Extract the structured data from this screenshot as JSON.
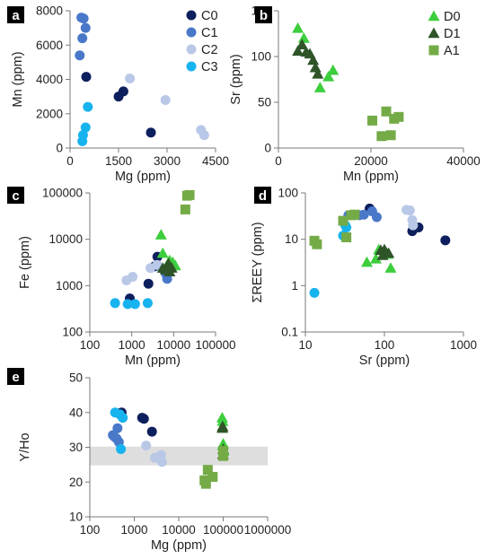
{
  "colors": {
    "C0": "#0d1f5c",
    "C1": "#4a78c9",
    "C2": "#b9c8e6",
    "C3": "#17b3ee",
    "D0": "#3dce3d",
    "D1": "#2e5428",
    "A1": "#74ab47",
    "band": "#dedede"
  },
  "chart_data": [
    {
      "id": "a",
      "type": "scatter",
      "panel_label": "a",
      "xlabel": "Mg (ppm)",
      "ylabel": "Mn (ppm)",
      "xscale": "linear",
      "yscale": "linear",
      "xlim": [
        0,
        4500
      ],
      "ylim": [
        0,
        8000
      ],
      "xticks": [
        "0",
        "1500",
        "3000",
        "4500"
      ],
      "yticks": [
        "0",
        "2000",
        "4000",
        "6000",
        "8000"
      ],
      "legend_position": "top-right",
      "legend": [
        "C0",
        "C1",
        "C2",
        "C3"
      ],
      "series": [
        {
          "name": "C0",
          "marker": "circle",
          "points": [
            [
              500,
              4150
            ],
            [
              1500,
              3000
            ],
            [
              1650,
              3300
            ],
            [
              2500,
              900
            ]
          ]
        },
        {
          "name": "C1",
          "marker": "circle",
          "points": [
            [
              350,
              7600
            ],
            [
              420,
              7550
            ],
            [
              480,
              7000
            ],
            [
              380,
              6400
            ],
            [
              300,
              5400
            ]
          ]
        },
        {
          "name": "C2",
          "marker": "circle",
          "points": [
            [
              1850,
              4050
            ],
            [
              2950,
              2800
            ],
            [
              4050,
              1050
            ],
            [
              4150,
              750
            ]
          ]
        },
        {
          "name": "C3",
          "marker": "circle",
          "points": [
            [
              550,
              2400
            ],
            [
              480,
              1200
            ],
            [
              400,
              750
            ],
            [
              380,
              400
            ]
          ]
        }
      ]
    },
    {
      "id": "b",
      "type": "scatter",
      "panel_label": "b",
      "xlabel": "Mn (ppm)",
      "ylabel": "Sr (ppm)",
      "xscale": "linear",
      "yscale": "linear",
      "xlim": [
        0,
        40000
      ],
      "ylim": [
        0,
        150
      ],
      "xticks": [
        "0",
        "20000",
        "40000"
      ],
      "yticks": [
        "0",
        "50",
        "100",
        "150"
      ],
      "legend_position": "top-right",
      "legend": [
        "D0",
        "D1",
        "A1"
      ],
      "series": [
        {
          "name": "D0",
          "marker": "triangle",
          "points": [
            [
              4200,
              131
            ],
            [
              5500,
              120
            ],
            [
              11800,
              85
            ],
            [
              10800,
              78
            ],
            [
              9000,
              66
            ]
          ]
        },
        {
          "name": "D1",
          "marker": "triangle",
          "points": [
            [
              5100,
              113
            ],
            [
              4200,
              106
            ],
            [
              6000,
              105
            ],
            [
              6800,
              103
            ],
            [
              7500,
              96
            ],
            [
              8000,
              88
            ],
            [
              8500,
              81
            ]
          ]
        },
        {
          "name": "A1",
          "marker": "square",
          "points": [
            [
              20300,
              30
            ],
            [
              22300,
              13
            ],
            [
              23300,
              40
            ],
            [
              24300,
              14
            ],
            [
              25000,
              32
            ],
            [
              26000,
              34
            ]
          ]
        }
      ]
    },
    {
      "id": "c",
      "type": "scatter",
      "panel_label": "c",
      "xlabel": "Mn (ppm)",
      "ylabel": "Fe (ppm)",
      "xscale": "log",
      "yscale": "log",
      "xlim": [
        100,
        100000
      ],
      "ylim": [
        100,
        100000
      ],
      "xticks": [
        "100",
        "1000",
        "10000",
        "100000"
      ],
      "yticks": [
        "100",
        "1000",
        "10000",
        "100000"
      ],
      "series": [
        {
          "name": "C0",
          "marker": "circle",
          "points": [
            [
              900,
              530
            ],
            [
              2500,
              1100
            ],
            [
              3500,
              2600
            ],
            [
              4100,
              4200
            ]
          ]
        },
        {
          "name": "C1",
          "marker": "circle",
          "points": [
            [
              5400,
              2300
            ],
            [
              6500,
              1800
            ],
            [
              7000,
              1400
            ],
            [
              7600,
              2600
            ],
            [
              6400,
              2100
            ]
          ]
        },
        {
          "name": "C2",
          "marker": "circle",
          "points": [
            [
              750,
              1300
            ],
            [
              1050,
              1550
            ],
            [
              2800,
              2400
            ],
            [
              4050,
              2800
            ]
          ]
        },
        {
          "name": "C3",
          "marker": "circle",
          "points": [
            [
              400,
              420
            ],
            [
              800,
              400
            ],
            [
              1200,
              400
            ],
            [
              2400,
              420
            ]
          ]
        },
        {
          "name": "D0",
          "marker": "triangle",
          "points": [
            [
              5000,
              12500
            ],
            [
              5500,
              5000
            ],
            [
              8000,
              3500
            ],
            [
              9500,
              3200
            ],
            [
              11000,
              2700
            ]
          ]
        },
        {
          "name": "D1",
          "marker": "triangle",
          "points": [
            [
              5500,
              2400
            ],
            [
              6500,
              2200
            ],
            [
              7500,
              3000
            ],
            [
              9000,
              2400
            ],
            [
              8000,
              2000
            ]
          ]
        },
        {
          "name": "A1",
          "marker": "square",
          "points": [
            [
              19000,
              44000
            ],
            [
              21000,
              87000
            ],
            [
              24000,
              90000
            ]
          ]
        }
      ]
    },
    {
      "id": "d",
      "type": "scatter",
      "panel_label": "d",
      "xlabel": "Sr (ppm)",
      "ylabel": "ΣREEY (ppm)",
      "xscale": "log",
      "yscale": "log",
      "xlim": [
        10,
        1000
      ],
      "ylim": [
        0.1,
        100
      ],
      "xticks": [
        "10",
        "100",
        "1000"
      ],
      "yticks": [
        "0.1",
        "1",
        "10",
        "100"
      ],
      "series": [
        {
          "name": "C0",
          "marker": "circle",
          "points": [
            [
              65,
              46
            ],
            [
              225,
              15
            ],
            [
              270,
              18
            ],
            [
              590,
              9.5
            ]
          ]
        },
        {
          "name": "C1",
          "marker": "circle",
          "points": [
            [
              35,
              33
            ],
            [
              48,
              33
            ],
            [
              55,
              34
            ],
            [
              80,
              30
            ],
            [
              70,
              40
            ]
          ]
        },
        {
          "name": "C2",
          "marker": "circle",
          "points": [
            [
              190,
              43
            ],
            [
              210,
              42
            ],
            [
              225,
              26
            ],
            [
              230,
              20
            ]
          ]
        },
        {
          "name": "C3",
          "marker": "circle",
          "points": [
            [
              13,
              0.7
            ],
            [
              30,
              12
            ],
            [
              32,
              20
            ],
            [
              33,
              18
            ]
          ]
        },
        {
          "name": "D0",
          "marker": "triangle",
          "points": [
            [
              60,
              3.2
            ],
            [
              78,
              3.8
            ],
            [
              85,
              6.0
            ],
            [
              110,
              4.8
            ],
            [
              120,
              2.4
            ]
          ]
        },
        {
          "name": "D1",
          "marker": "triangle",
          "points": [
            [
              90,
              5.8
            ],
            [
              100,
              6.0
            ],
            [
              105,
              5.2
            ],
            [
              113,
              5.0
            ],
            [
              95,
              4.5
            ]
          ]
        },
        {
          "name": "A1",
          "marker": "square",
          "points": [
            [
              13,
              9.3
            ],
            [
              14,
              7.8
            ],
            [
              30,
              25
            ],
            [
              33,
              11
            ],
            [
              38,
              33
            ],
            [
              42,
              34
            ]
          ]
        }
      ]
    },
    {
      "id": "e",
      "type": "scatter",
      "panel_label": "e",
      "xlabel": "Mg (ppm)",
      "ylabel": "Y/Ho",
      "xscale": "log",
      "yscale": "linear",
      "xlim": [
        100,
        1000000
      ],
      "ylim": [
        10,
        50
      ],
      "xticks": [
        "100",
        "1000",
        "10000",
        "100000",
        "1000000"
      ],
      "yticks": [
        "10",
        "20",
        "30",
        "40",
        "50"
      ],
      "band": [
        24.8,
        30.2
      ],
      "series": [
        {
          "name": "C0",
          "marker": "circle",
          "points": [
            [
              520,
              40
            ],
            [
              1500,
              38.5
            ],
            [
              1650,
              38.2
            ],
            [
              2500,
              34.5
            ]
          ]
        },
        {
          "name": "C1",
          "marker": "circle",
          "points": [
            [
              360,
              33
            ],
            [
              400,
              32.5
            ],
            [
              420,
              35.5
            ],
            [
              450,
              31.5
            ],
            [
              330,
              33.5
            ]
          ]
        },
        {
          "name": "C2",
          "marker": "circle",
          "points": [
            [
              1850,
              30.5
            ],
            [
              2900,
              27
            ],
            [
              4000,
              27.8
            ],
            [
              4200,
              25.8
            ]
          ]
        },
        {
          "name": "C3",
          "marker": "circle",
          "points": [
            [
              370,
              40
            ],
            [
              470,
              39.5
            ],
            [
              550,
              38.5
            ],
            [
              500,
              29.5
            ]
          ]
        },
        {
          "name": "D0",
          "marker": "triangle",
          "points": [
            [
              95000,
              38.5
            ],
            [
              97000,
              37.5
            ],
            [
              100000,
              31
            ],
            [
              98000,
              30.5
            ],
            [
              103000,
              29
            ]
          ]
        },
        {
          "name": "D1",
          "marker": "triangle",
          "points": [
            [
              97000,
              36
            ],
            [
              96000,
              35.5
            ],
            [
              100000,
              29.5
            ],
            [
              99000,
              28
            ]
          ]
        },
        {
          "name": "A1",
          "marker": "square",
          "points": [
            [
              38000,
              20.5
            ],
            [
              41000,
              19.5
            ],
            [
              45000,
              23.5
            ],
            [
              58000,
              21.5
            ],
            [
              100000,
              27.5
            ],
            [
              100000,
              29
            ]
          ]
        }
      ]
    }
  ]
}
